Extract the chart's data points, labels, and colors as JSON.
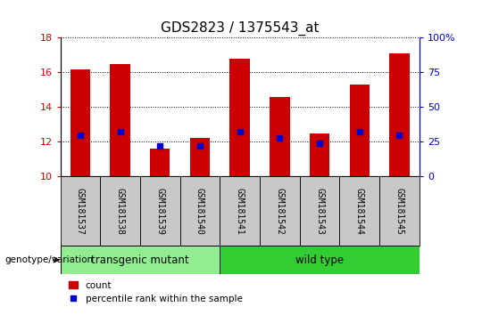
{
  "title": "GDS2823 / 1375543_at",
  "samples": [
    "GSM181537",
    "GSM181538",
    "GSM181539",
    "GSM181540",
    "GSM181541",
    "GSM181542",
    "GSM181543",
    "GSM181544",
    "GSM181545"
  ],
  "count_values": [
    16.2,
    16.5,
    11.6,
    12.2,
    16.8,
    14.6,
    12.5,
    15.3,
    17.1
  ],
  "percentile_values": [
    30,
    32,
    22,
    22,
    32,
    28,
    24,
    32,
    30
  ],
  "ylim_left": [
    10,
    18
  ],
  "ylim_right": [
    0,
    100
  ],
  "yticks_left": [
    10,
    12,
    14,
    16,
    18
  ],
  "yticks_right": [
    0,
    25,
    50,
    75,
    100
  ],
  "bar_color": "#CC0000",
  "dot_color": "#0000CC",
  "bar_width": 0.5,
  "group1_label": "transgenic mutant",
  "group2_label": "wild type",
  "group1_indices": [
    0,
    1,
    2,
    3
  ],
  "group2_indices": [
    4,
    5,
    6,
    7,
    8
  ],
  "group1_color": "#90EE90",
  "group2_color": "#32CD32",
  "genotype_label": "genotype/variation",
  "legend_count": "count",
  "legend_pct": "percentile rank within the sample",
  "bar_bottom": 10,
  "label_gray": "#C8C8C8",
  "tick_label_fontsize": 8,
  "title_fontsize": 11
}
